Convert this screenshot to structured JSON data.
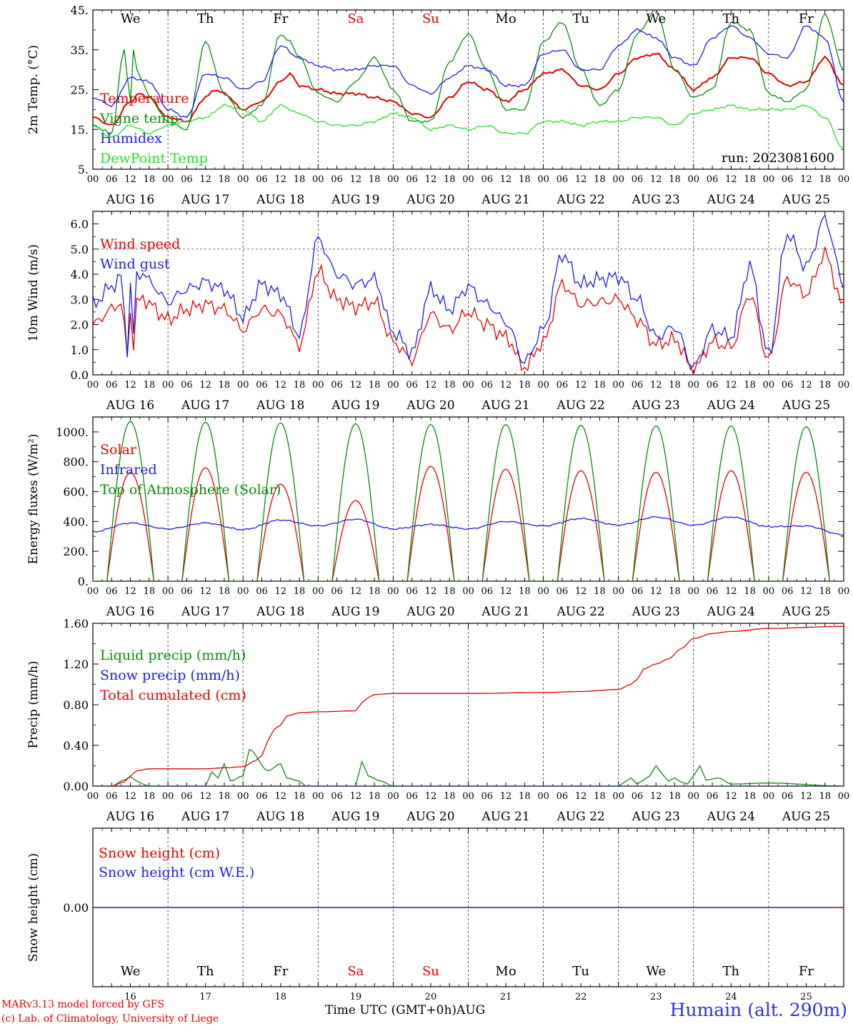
{
  "colors": {
    "red": "#e00000",
    "green": "#0a8a0a",
    "blue": "#1a1ae6",
    "lightgreen": "#20e020",
    "purple": "#7a3aa0",
    "axis": "#000000"
  },
  "run_label": "run: 2023081600",
  "footer": {
    "credit_line1": "MARv3.13 model forced by GFS",
    "credit_line2": "(c) Lab. of Climatology, University of Liege",
    "xaxis_title": "Time UTC (GMT+0h)",
    "month": "AUG",
    "station": "Humain (alt. 290m)"
  },
  "days": [
    {
      "weekday": "We",
      "date": "AUG 16",
      "num": "16",
      "weekend": false
    },
    {
      "weekday": "Th",
      "date": "AUG 17",
      "num": "17",
      "weekend": false
    },
    {
      "weekday": "Fr",
      "date": "AUG 18",
      "num": "18",
      "weekend": false
    },
    {
      "weekday": "Sa",
      "date": "AUG 19",
      "num": "19",
      "weekend": true
    },
    {
      "weekday": "Su",
      "date": "AUG 20",
      "num": "20",
      "weekend": true
    },
    {
      "weekday": "Mo",
      "date": "AUG 21",
      "num": "21",
      "weekend": false
    },
    {
      "weekday": "Tu",
      "date": "AUG 22",
      "num": "22",
      "weekend": false
    },
    {
      "weekday": "We",
      "date": "AUG 23",
      "num": "23",
      "weekend": false
    },
    {
      "weekday": "Th",
      "date": "AUG 24",
      "num": "24",
      "weekend": false
    },
    {
      "weekday": "Fr",
      "date": "AUG 25",
      "num": "25",
      "weekend": false
    }
  ],
  "hour_ticks": [
    "00",
    "06",
    "12",
    "18"
  ],
  "chart_data": [
    {
      "id": "temperature",
      "type": "line",
      "ylabel": "2m Temp. (°C)",
      "ylim": [
        5,
        45
      ],
      "yticks": [
        5,
        15,
        25,
        35,
        45
      ],
      "ytick_labels": [
        "5.",
        "15.",
        "25.",
        "35.",
        "45."
      ],
      "x_unit": "hours since AUG 16 00 UTC",
      "series": [
        {
          "name": "Temperature",
          "color": "#e00000",
          "x": [
            0,
            6,
            12,
            15,
            18,
            24,
            30,
            36,
            39,
            42,
            48,
            54,
            60,
            63,
            66,
            72,
            78,
            84,
            90,
            96,
            102,
            108,
            114,
            120,
            126,
            132,
            138,
            144,
            150,
            156,
            162,
            168,
            174,
            180,
            186,
            192,
            198,
            204,
            210,
            216,
            222,
            228,
            234,
            240
          ],
          "y": [
            18,
            16,
            22,
            24,
            23,
            18,
            17,
            23,
            25,
            24,
            20,
            22,
            27,
            29,
            26,
            25,
            24,
            24,
            23,
            22,
            19,
            18,
            23,
            27,
            25,
            22,
            25,
            29,
            30,
            26,
            25,
            29,
            33,
            34,
            30,
            25,
            28,
            33,
            33,
            29,
            26,
            27,
            33,
            26
          ]
        },
        {
          "name": "Vigne temp",
          "color": "#0a8a0a",
          "x": [
            0,
            6,
            10,
            12,
            13,
            14,
            16,
            18,
            24,
            30,
            36,
            42,
            48,
            54,
            60,
            63,
            66,
            72,
            78,
            84,
            90,
            96,
            102,
            108,
            114,
            120,
            126,
            132,
            138,
            144,
            150,
            156,
            162,
            168,
            174,
            180,
            186,
            192,
            198,
            204,
            210,
            216,
            222,
            228,
            234,
            240
          ],
          "y": [
            16,
            14,
            35,
            22,
            35,
            30,
            27,
            23,
            17,
            15,
            37,
            24,
            18,
            21,
            39,
            37,
            33,
            24,
            22,
            27,
            33,
            25,
            17,
            17,
            32,
            39,
            30,
            20,
            20,
            37,
            42,
            30,
            21,
            25,
            39,
            45,
            30,
            23,
            25,
            42,
            40,
            24,
            22,
            25,
            44,
            30
          ]
        },
        {
          "name": "Humidex",
          "color": "#1a1ae6",
          "x": [
            0,
            6,
            12,
            18,
            24,
            30,
            36,
            42,
            48,
            54,
            60,
            66,
            72,
            78,
            84,
            90,
            96,
            102,
            108,
            114,
            120,
            126,
            132,
            138,
            144,
            150,
            156,
            162,
            168,
            174,
            180,
            186,
            192,
            198,
            204,
            210,
            216,
            222,
            228,
            234,
            240
          ],
          "y": [
            23,
            21,
            28,
            27,
            20,
            18,
            29,
            28,
            25,
            27,
            36,
            33,
            31,
            30,
            30,
            31,
            31,
            26,
            24,
            28,
            31,
            30,
            26,
            26,
            34,
            35,
            30,
            30,
            36,
            40,
            38,
            33,
            31,
            38,
            41,
            38,
            34,
            33,
            41,
            38,
            22
          ]
        },
        {
          "name": "DewPoint Temp",
          "color": "#20e020",
          "x": [
            0,
            6,
            12,
            18,
            24,
            30,
            36,
            42,
            48,
            54,
            60,
            66,
            72,
            78,
            84,
            90,
            96,
            102,
            108,
            114,
            120,
            126,
            132,
            138,
            144,
            150,
            156,
            162,
            168,
            174,
            180,
            186,
            192,
            198,
            204,
            210,
            216,
            222,
            228,
            234,
            240
          ],
          "y": [
            16,
            13,
            16,
            14,
            16,
            17,
            18,
            21,
            20,
            17,
            21,
            19,
            17,
            16,
            16,
            17,
            19,
            18,
            15,
            16,
            15,
            16,
            14,
            14,
            17,
            17,
            16,
            17,
            17,
            18,
            18,
            16,
            19,
            20,
            21,
            20,
            20,
            20,
            21,
            18,
            10
          ]
        }
      ]
    },
    {
      "id": "wind",
      "type": "line",
      "ylabel": "10m Wind (m/s)",
      "ylim": [
        0,
        6.5
      ],
      "yticks": [
        0,
        1,
        2,
        3,
        4,
        5,
        6
      ],
      "ytick_labels": [
        "0.0",
        "1.0",
        "2.0",
        "3.0",
        "4.0",
        "5.0",
        "6.0"
      ],
      "reference_line": 5.0,
      "series": [
        {
          "name": "Wind speed",
          "color": "#e00000",
          "x": [
            0,
            6,
            9,
            11,
            12,
            13,
            14,
            16,
            18,
            24,
            30,
            36,
            42,
            48,
            54,
            60,
            66,
            72,
            78,
            84,
            90,
            96,
            102,
            108,
            114,
            120,
            126,
            132,
            138,
            144,
            150,
            156,
            162,
            168,
            174,
            180,
            186,
            192,
            198,
            204,
            210,
            216,
            222,
            228,
            234,
            240
          ],
          "y": [
            2.0,
            2.6,
            2.9,
            0.8,
            2.5,
            1.2,
            2.8,
            3.1,
            2.8,
            2.2,
            2.6,
            2.8,
            2.6,
            1.8,
            2.6,
            2.4,
            1.2,
            4.1,
            3.0,
            2.7,
            2.9,
            1.3,
            0.6,
            2.4,
            1.8,
            2.5,
            2.0,
            1.5,
            0.3,
            1.3,
            3.6,
            2.8,
            2.9,
            3.0,
            2.2,
            1.2,
            1.4,
            0.2,
            1.3,
            1.1,
            3.2,
            0.6,
            3.8,
            3.2,
            4.8,
            2.7
          ]
        },
        {
          "name": "Wind gust",
          "color": "#1a1ae6",
          "x": [
            0,
            6,
            9,
            11,
            12,
            13,
            14,
            16,
            18,
            24,
            30,
            36,
            42,
            48,
            54,
            60,
            66,
            72,
            78,
            84,
            90,
            96,
            102,
            108,
            114,
            120,
            126,
            132,
            138,
            144,
            150,
            156,
            162,
            168,
            174,
            180,
            186,
            192,
            198,
            204,
            210,
            216,
            222,
            228,
            234,
            240
          ],
          "y": [
            2.8,
            3.5,
            3.9,
            1.0,
            3.6,
            1.6,
            3.9,
            4.1,
            3.7,
            2.9,
            3.4,
            3.7,
            3.4,
            2.3,
            3.6,
            3.2,
            1.6,
            5.4,
            4.0,
            3.6,
            3.8,
            1.7,
            0.9,
            3.4,
            2.6,
            3.5,
            2.8,
            2.1,
            0.5,
            1.8,
            4.8,
            3.6,
            3.8,
            3.9,
            3.0,
            1.5,
            1.9,
            0.3,
            1.8,
            1.5,
            4.3,
            0.8,
            5.6,
            4.3,
            6.2,
            3.6
          ]
        }
      ]
    },
    {
      "id": "energy",
      "type": "line",
      "ylabel": "Energy fluxes (W/m²)",
      "ylim": [
        0,
        1100
      ],
      "yticks": [
        0,
        200,
        400,
        600,
        800,
        1000
      ],
      "ytick_labels": [
        "0.",
        "200.",
        "400.",
        "600.",
        "800.",
        "1000."
      ],
      "series": [
        {
          "name": "Solar",
          "color": "#e00000",
          "solar_peaks": [
            730,
            760,
            650,
            540,
            770,
            750,
            740,
            730,
            740,
            730
          ]
        },
        {
          "name": "Infrared",
          "color": "#1a1ae6",
          "x": [
            0,
            12,
            24,
            36,
            48,
            60,
            72,
            84,
            96,
            108,
            120,
            132,
            144,
            156,
            168,
            180,
            192,
            204,
            216,
            228,
            240
          ],
          "y": [
            330,
            390,
            350,
            390,
            345,
            410,
            370,
            415,
            350,
            380,
            350,
            400,
            370,
            420,
            375,
            430,
            375,
            430,
            365,
            370,
            310
          ]
        },
        {
          "name": "Top of Atmosphere (Solar)",
          "color": "#0a8a0a",
          "solar_peaks": [
            1070,
            1065,
            1060,
            1055,
            1050,
            1050,
            1045,
            1040,
            1040,
            1035
          ]
        }
      ],
      "sunrise_hour": 4.5,
      "sunset_hour": 19.5
    },
    {
      "id": "precip",
      "type": "line",
      "ylabel": "Precip (mm/h)",
      "ylim": [
        0,
        1.6
      ],
      "yticks": [
        0,
        0.4,
        0.8,
        1.2,
        1.6
      ],
      "ytick_labels": [
        "0.00",
        "0.40",
        "0.80",
        "1.20",
        "1.60"
      ],
      "series": [
        {
          "name": "Liquid precip (mm/h)",
          "color": "#0a8a0a",
          "x": [
            0,
            6,
            10,
            12,
            14,
            16,
            18,
            30,
            36,
            38,
            40,
            42,
            44,
            48,
            50,
            56,
            60,
            62,
            66,
            68,
            72,
            84,
            86,
            88,
            92,
            96,
            120,
            144,
            168,
            170,
            172,
            174,
            176,
            178,
            180,
            182,
            184,
            186,
            188,
            190,
            192,
            194,
            196,
            200,
            204,
            216,
            240
          ],
          "y": [
            0,
            0,
            0.06,
            0.09,
            0.05,
            0.02,
            0,
            0,
            0,
            0.14,
            0.08,
            0.22,
            0.05,
            0.1,
            0.36,
            0.15,
            0.22,
            0.08,
            0.05,
            0,
            0,
            0,
            0.24,
            0.1,
            0.05,
            0,
            0,
            0,
            0,
            0.04,
            0.08,
            0.02,
            0.06,
            0.1,
            0.2,
            0.12,
            0.05,
            0.08,
            0.04,
            0.02,
            0.1,
            0.2,
            0.06,
            0.08,
            0.02,
            0.03,
            0
          ]
        },
        {
          "name": "Snow precip (mm/h)",
          "color": "#1a1ae6",
          "x": [
            0,
            240
          ],
          "y": [
            0,
            0
          ]
        },
        {
          "name": "Total cumulated (cm)",
          "color": "#e00000",
          "x": [
            0,
            6,
            10,
            12,
            14,
            18,
            24,
            36,
            42,
            48,
            52,
            54,
            56,
            58,
            60,
            62,
            66,
            72,
            84,
            86,
            88,
            90,
            96,
            120,
            144,
            156,
            168,
            172,
            174,
            176,
            180,
            184,
            188,
            192,
            198,
            204,
            216,
            240
          ],
          "y": [
            0,
            0,
            0.04,
            0.1,
            0.15,
            0.17,
            0.17,
            0.17,
            0.18,
            0.19,
            0.25,
            0.3,
            0.45,
            0.56,
            0.6,
            0.69,
            0.72,
            0.73,
            0.74,
            0.82,
            0.87,
            0.9,
            0.91,
            0.91,
            0.92,
            0.93,
            0.95,
            1.0,
            1.05,
            1.15,
            1.2,
            1.25,
            1.35,
            1.45,
            1.5,
            1.52,
            1.55,
            1.57
          ]
        }
      ]
    },
    {
      "id": "snow",
      "type": "line",
      "ylabel": "Snow height (cm)",
      "ylim": [
        -1,
        1
      ],
      "yticks": [
        0
      ],
      "ytick_labels": [
        "0.00"
      ],
      "series": [
        {
          "name": "Snow height (cm)",
          "color": "#e00000",
          "x": [
            0,
            240
          ],
          "y": [
            0,
            0
          ]
        },
        {
          "name": "Snow height (cm W.E.)",
          "color": "#1a1ae6",
          "x": [
            0,
            240
          ],
          "y": [
            0,
            0
          ]
        }
      ]
    }
  ]
}
